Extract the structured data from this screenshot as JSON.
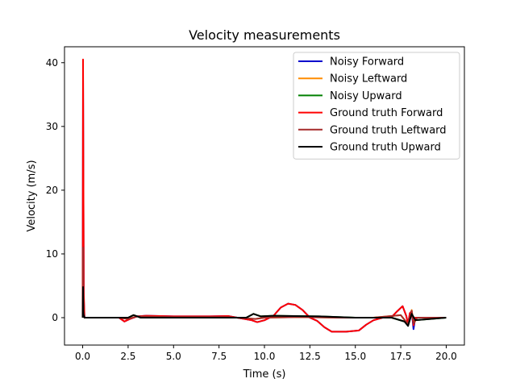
{
  "chart_data": {
    "type": "line",
    "title": "Velocity measurements",
    "xlabel": "Time (s)",
    "ylabel": "Velocity (m/s)",
    "xlim": [
      -1.0,
      21.0
    ],
    "ylim": [
      -4.3,
      42.5
    ],
    "xticks": [
      0.0,
      2.5,
      5.0,
      7.5,
      10.0,
      12.5,
      15.0,
      17.5,
      20.0
    ],
    "xtick_labels": [
      "0.0",
      "2.5",
      "5.0",
      "7.5",
      "10.0",
      "12.5",
      "15.0",
      "17.5",
      "20.0"
    ],
    "yticks": [
      0,
      10,
      20,
      30,
      40
    ],
    "ytick_labels": [
      "0",
      "10",
      "20",
      "30",
      "40"
    ],
    "grid": false,
    "legend_position": "top-right",
    "series": [
      {
        "name": "Noisy Forward",
        "color": "#0000cc",
        "x": [
          0.0,
          0.02,
          0.04,
          0.06,
          0.1,
          2.0,
          2.3,
          2.6,
          3.0,
          3.5,
          5.0,
          7.0,
          8.0,
          8.5,
          9.3,
          9.6,
          10.0,
          10.5,
          10.9,
          11.3,
          11.7,
          12.1,
          12.5,
          12.9,
          13.3,
          13.7,
          14.5,
          15.2,
          15.6,
          16.0,
          16.5,
          17.0,
          17.3,
          17.6,
          17.8,
          17.9,
          18.0,
          18.1,
          18.2,
          18.3,
          18.5,
          20.0
        ],
        "y": [
          0.0,
          38.0,
          20.0,
          3.0,
          0.0,
          0.0,
          -0.6,
          -0.2,
          0.2,
          0.3,
          0.2,
          0.2,
          0.25,
          0.0,
          -0.4,
          -0.7,
          -0.4,
          0.3,
          1.6,
          2.2,
          2.0,
          1.2,
          0.0,
          -0.5,
          -1.5,
          -2.2,
          -2.2,
          -2.0,
          -1.1,
          -0.4,
          0.0,
          0.1,
          1.0,
          1.8,
          0.3,
          -1.0,
          0.7,
          1.0,
          -1.8,
          0.0,
          0.0,
          0.0
        ]
      },
      {
        "name": "Noisy Leftward",
        "color": "#ff8c00",
        "x": [
          0.0,
          0.02,
          0.04,
          0.1,
          2.0,
          2.5,
          3.0,
          5.0,
          8.0,
          9.5,
          10.0,
          12.0,
          14.0,
          16.0,
          17.5,
          17.9,
          18.1,
          18.2,
          18.4,
          20.0
        ],
        "y": [
          0.0,
          12.0,
          1.0,
          0.0,
          0.0,
          -0.2,
          0.2,
          0.1,
          0.1,
          -0.2,
          0.0,
          0.1,
          0.0,
          0.0,
          0.4,
          -1.1,
          1.2,
          -1.0,
          0.0,
          0.0
        ]
      },
      {
        "name": "Noisy Upward",
        "color": "#008000",
        "x": [
          0.0,
          0.02,
          0.04,
          0.1,
          2.5,
          2.8,
          3.2,
          9.0,
          9.4,
          9.8,
          10.5,
          13.0,
          15.0,
          17.0,
          17.7,
          17.9,
          18.1,
          18.3,
          20.0
        ],
        "y": [
          0.0,
          4.0,
          0.5,
          0.0,
          0.0,
          0.4,
          0.0,
          0.0,
          0.6,
          0.2,
          0.3,
          0.2,
          0.0,
          0.0,
          -0.6,
          -1.0,
          0.6,
          -0.4,
          0.0
        ]
      },
      {
        "name": "Ground truth Forward",
        "color": "#ff0000",
        "x": [
          0.0,
          0.02,
          0.04,
          0.06,
          0.1,
          2.0,
          2.3,
          2.6,
          3.0,
          3.5,
          5.0,
          7.0,
          8.0,
          8.5,
          9.3,
          9.6,
          10.0,
          10.5,
          10.9,
          11.3,
          11.7,
          12.1,
          12.5,
          12.9,
          13.3,
          13.7,
          14.5,
          15.2,
          15.6,
          16.0,
          16.5,
          17.0,
          17.3,
          17.6,
          17.8,
          17.9,
          18.0,
          18.1,
          18.2,
          18.3,
          18.5,
          20.0
        ],
        "y": [
          0.0,
          40.5,
          22.0,
          4.0,
          0.0,
          0.0,
          -0.6,
          -0.2,
          0.2,
          0.3,
          0.2,
          0.2,
          0.25,
          0.0,
          -0.4,
          -0.7,
          -0.4,
          0.3,
          1.6,
          2.2,
          2.0,
          1.2,
          0.0,
          -0.5,
          -1.5,
          -2.2,
          -2.2,
          -2.0,
          -1.1,
          -0.4,
          0.0,
          0.1,
          1.0,
          1.8,
          0.3,
          -1.0,
          0.7,
          1.0,
          -1.2,
          0.0,
          0.0,
          0.0
        ]
      },
      {
        "name": "Ground truth Leftward",
        "color": "#a52a2a",
        "x": [
          0.0,
          0.02,
          0.04,
          0.1,
          2.0,
          2.5,
          3.0,
          5.0,
          8.0,
          9.5,
          10.0,
          12.0,
          14.0,
          16.0,
          17.5,
          17.9,
          18.1,
          18.2,
          18.4,
          20.0
        ],
        "y": [
          0.0,
          11.0,
          1.0,
          0.0,
          0.0,
          -0.2,
          0.2,
          0.1,
          0.1,
          -0.2,
          0.0,
          0.1,
          0.0,
          0.0,
          0.4,
          -1.0,
          1.1,
          -0.9,
          0.0,
          0.0
        ]
      },
      {
        "name": "Ground truth Upward",
        "color": "#000000",
        "x": [
          0.0,
          0.02,
          0.04,
          0.1,
          2.5,
          2.8,
          3.2,
          9.0,
          9.4,
          9.8,
          10.5,
          13.0,
          15.0,
          17.0,
          17.7,
          17.9,
          18.1,
          18.3,
          20.0
        ],
        "y": [
          0.0,
          4.8,
          0.5,
          0.0,
          0.0,
          0.4,
          0.0,
          0.0,
          0.6,
          0.2,
          0.3,
          0.2,
          0.0,
          0.0,
          -0.6,
          -1.3,
          0.6,
          -0.4,
          0.0
        ]
      }
    ]
  }
}
